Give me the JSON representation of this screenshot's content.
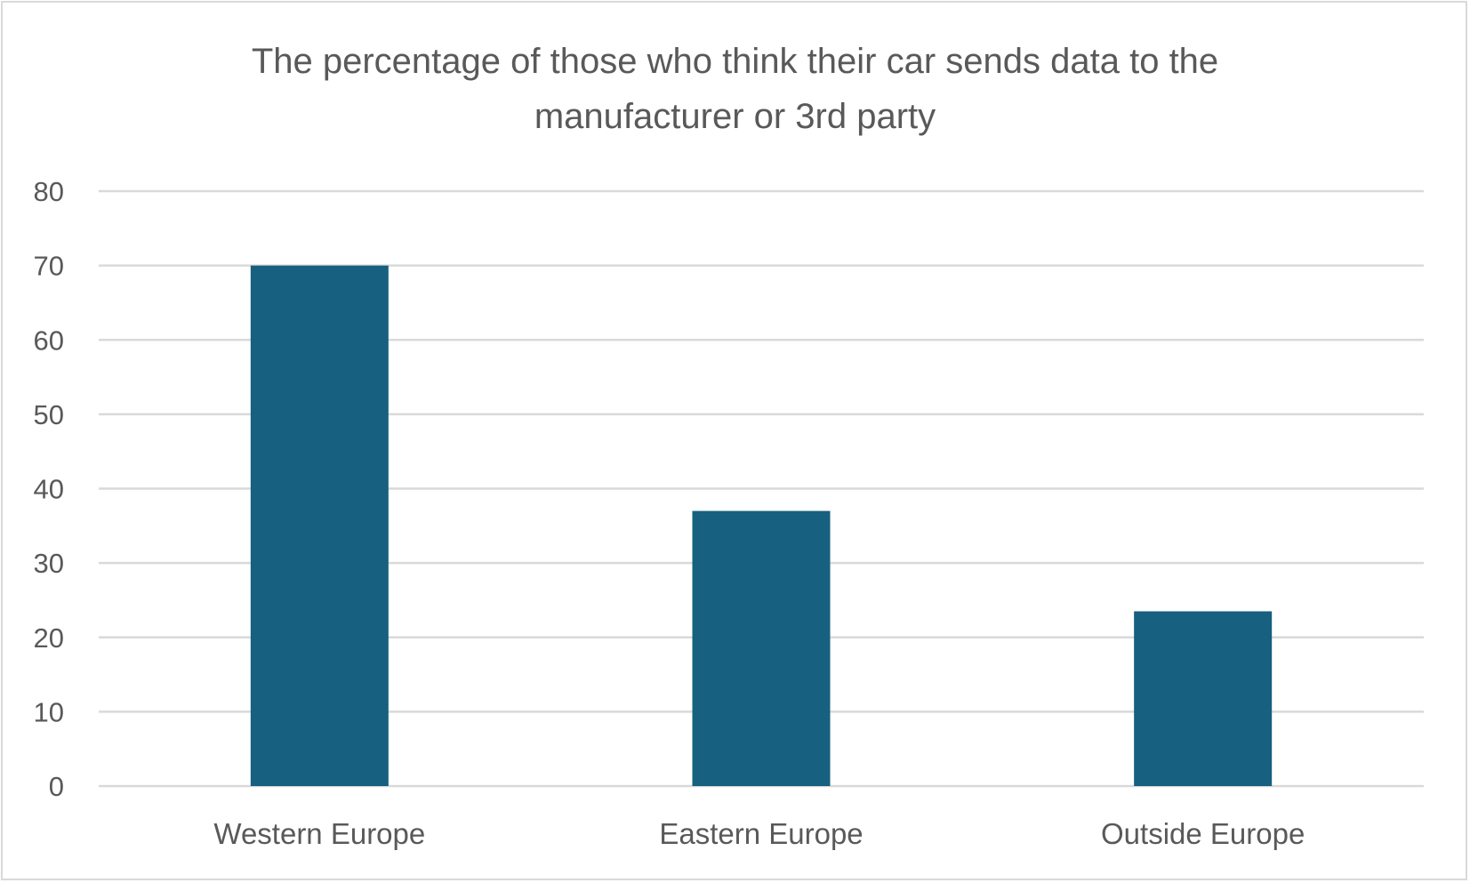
{
  "chart_data": {
    "type": "bar",
    "title_lines": [
      "The percentage of those who think their car sends data to the",
      "manufacturer or 3rd party"
    ],
    "categories": [
      "Western Europe",
      "Eastern Europe",
      "Outside Europe"
    ],
    "values": [
      70,
      37,
      23.5
    ],
    "xlabel": "",
    "ylabel": "",
    "ylim": [
      0,
      80
    ],
    "yticks": [
      "0",
      "10",
      "20",
      "30",
      "40",
      "50",
      "60",
      "70",
      "80"
    ],
    "grid": true,
    "legend": "none",
    "bar_color": "#17607f",
    "grid_color": "#d9d9d9",
    "text_color": "#595959"
  }
}
